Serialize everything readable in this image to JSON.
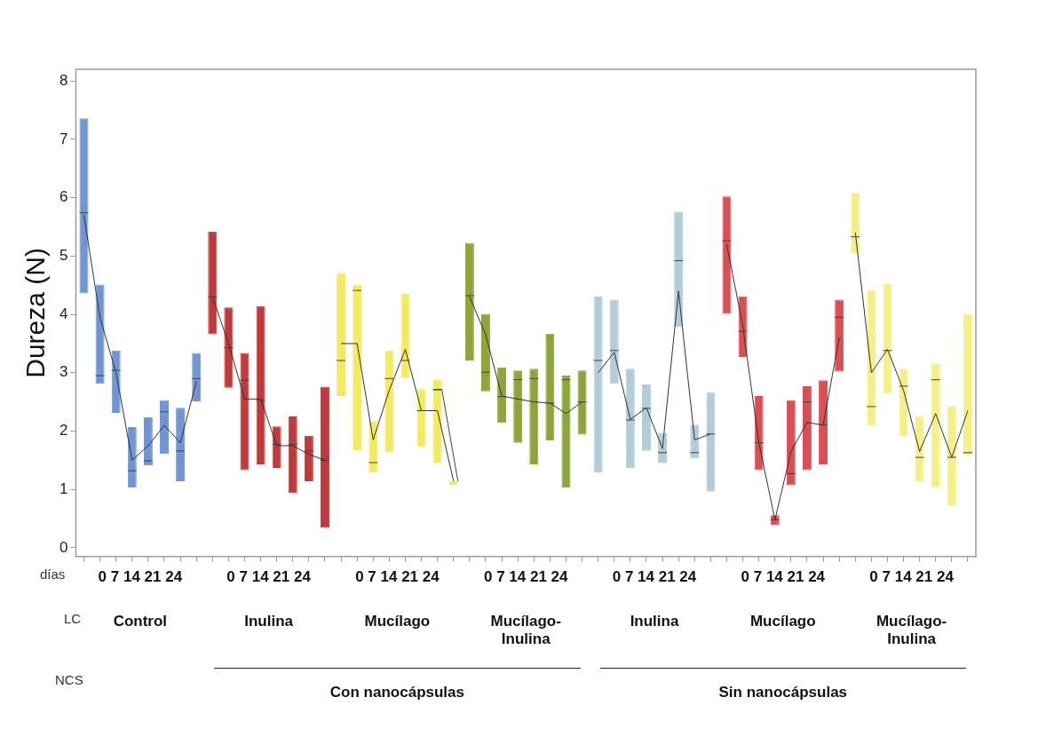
{
  "chart_data": {
    "type": "box",
    "ylabel": "Dureza (N)",
    "ylim": [
      -0.15,
      8.2
    ],
    "yticks": [
      0,
      1,
      2,
      3,
      4,
      5,
      6,
      7,
      8
    ],
    "grid": false,
    "legend": false,
    "categories": [
      null,
      null,
      null,
      null,
      null,
      null,
      null,
      null,
      null,
      null,
      null,
      null,
      null,
      null,
      null,
      null,
      null,
      null,
      null,
      null,
      null,
      null,
      null,
      null,
      null,
      null,
      null,
      null,
      null,
      null,
      null,
      null,
      null,
      null,
      null,
      null,
      null,
      null,
      null,
      null,
      null,
      null,
      null,
      null,
      null,
      null,
      null,
      null,
      null,
      null,
      null,
      null,
      null,
      null,
      null,
      null
    ],
    "annotations": [
      "días",
      "0 7 14 21 24",
      "0 7 14 21 24",
      "0 7 14 21 24",
      "0 7 14 21 24",
      "0 7 14 21 24",
      "0 7 14 21 24",
      "0 7 14 21 24",
      "LC",
      "Control",
      "Inulina",
      "Mucílago",
      "Mucílago-Inulina",
      "Inulina",
      "Mucílago",
      "Mucílago-Inulina",
      "NCS",
      "Con nanocápsulas",
      "Sin nanocápsulas"
    ],
    "series": [
      {
        "type": "box",
        "color": "#6f95d2",
        "boxes": [
          {
            "low": 4.36,
            "q1": 4.36,
            "median": 5.74,
            "q3": 7.36,
            "high": 7.36
          },
          {
            "low": 2.81,
            "q1": 2.81,
            "median": 2.95,
            "q3": 4.51,
            "high": 4.51
          },
          {
            "low": 2.31,
            "q1": 2.31,
            "median": 3.04,
            "q3": 3.38,
            "high": 3.38
          },
          {
            "low": 1.03,
            "q1": 1.03,
            "median": 1.32,
            "q3": 2.07,
            "high": 2.07
          },
          {
            "low": 1.41,
            "q1": 1.41,
            "median": 1.49,
            "q3": 2.24,
            "high": 2.24
          },
          {
            "low": 1.61,
            "q1": 1.61,
            "median": 2.33,
            "q3": 2.53,
            "high": 2.53
          },
          {
            "low": 1.14,
            "q1": 1.14,
            "median": 1.66,
            "q3": 2.4,
            "high": 2.4
          },
          {
            "low": 2.51,
            "q1": 2.51,
            "median": 2.9,
            "q3": 3.34,
            "high": 3.34
          },
          null,
          null,
          null,
          null,
          null,
          null,
          null,
          null,
          null,
          null,
          null,
          null,
          null,
          null,
          null,
          null,
          null,
          null,
          null,
          null,
          null,
          null,
          null,
          null,
          null,
          null,
          null,
          null,
          null,
          null,
          null,
          null,
          null,
          null,
          null,
          null,
          null,
          null,
          null,
          null,
          null,
          null,
          null,
          null,
          null,
          null,
          null,
          null
        ]
      },
      {
        "type": "box",
        "color": "#c0393b",
        "boxes": [
          null,
          null,
          null,
          null,
          null,
          null,
          null,
          null,
          {
            "low": 3.66,
            "q1": 3.66,
            "median": 4.3,
            "q3": 5.42,
            "high": 5.42
          },
          {
            "low": 2.74,
            "q1": 2.74,
            "median": 3.43,
            "q3": 4.12,
            "high": 4.12
          },
          {
            "low": 1.33,
            "q1": 1.33,
            "median": 2.87,
            "q3": 3.34,
            "high": 3.34
          },
          {
            "low": 1.43,
            "q1": 1.43,
            "median": 2.53,
            "q3": 4.14,
            "high": 4.14
          },
          {
            "low": 1.37,
            "q1": 1.37,
            "median": 1.77,
            "q3": 2.08,
            "high": 2.08
          },
          {
            "low": 0.94,
            "q1": 0.94,
            "median": 1.77,
            "q3": 2.25,
            "high": 2.25
          },
          {
            "low": 1.14,
            "q1": 1.14,
            "median": 1.66,
            "q3": 1.92,
            "high": 1.92
          },
          {
            "low": 0.34,
            "q1": 0.34,
            "median": 1.5,
            "q3": 2.76,
            "high": 2.76
          },
          null,
          null,
          null,
          null,
          null,
          null,
          null,
          null,
          null,
          null,
          null,
          null,
          null,
          null,
          null,
          null,
          null,
          null,
          null,
          null,
          null,
          null,
          null,
          null,
          null,
          null,
          null,
          null,
          null,
          null,
          null,
          null,
          null,
          null,
          null,
          null,
          null,
          null,
          null,
          null
        ]
      },
      {
        "type": "box",
        "color": "#f2ea62",
        "boxes": [
          null,
          null,
          null,
          null,
          null,
          null,
          null,
          null,
          null,
          null,
          null,
          null,
          null,
          null,
          null,
          null,
          {
            "low": 2.6,
            "q1": 2.6,
            "median": 3.21,
            "q3": 4.71,
            "high": 4.71
          },
          {
            "low": 1.67,
            "q1": 1.67,
            "median": 4.41,
            "q3": 4.51,
            "high": 4.51
          },
          {
            "low": 1.29,
            "q1": 1.29,
            "median": 1.46,
            "q3": 2.17,
            "high": 2.17
          },
          {
            "low": 1.63,
            "q1": 1.63,
            "median": 2.9,
            "q3": 3.38,
            "high": 3.38
          },
          {
            "low": 2.91,
            "q1": 2.91,
            "median": 3.21,
            "q3": 4.35,
            "high": 4.35
          },
          {
            "low": 1.73,
            "q1": 1.73,
            "median": 2.35,
            "q3": 2.72,
            "high": 2.72
          },
          {
            "low": 1.45,
            "q1": 1.45,
            "median": 2.71,
            "q3": 2.88,
            "high": 2.88
          },
          {
            "low": 1.14,
            "q1": 1.14,
            "median": 1.14,
            "q3": 1.14,
            "high": 1.14
          },
          null,
          null,
          null,
          null,
          null,
          null,
          null,
          null,
          null,
          null,
          null,
          null,
          null,
          null,
          null,
          null,
          null,
          null,
          null,
          null,
          null,
          null,
          null,
          null,
          null,
          null,
          null,
          null,
          null,
          null,
          null,
          null
        ]
      },
      {
        "type": "box",
        "color": "#8ea53a",
        "boxes": [
          null,
          null,
          null,
          null,
          null,
          null,
          null,
          null,
          null,
          null,
          null,
          null,
          null,
          null,
          null,
          null,
          null,
          null,
          null,
          null,
          null,
          null,
          null,
          null,
          {
            "low": 3.21,
            "q1": 3.21,
            "median": 4.32,
            "q3": 5.22,
            "high": 5.22
          },
          {
            "low": 2.68,
            "q1": 2.68,
            "median": 3.01,
            "q3": 4.01,
            "high": 4.01
          },
          {
            "low": 2.14,
            "q1": 2.14,
            "median": 2.59,
            "q3": 3.09,
            "high": 3.09
          },
          {
            "low": 1.8,
            "q1": 1.8,
            "median": 2.88,
            "q3": 3.04,
            "high": 3.04
          },
          {
            "low": 1.43,
            "q1": 1.43,
            "median": 2.9,
            "q3": 3.07,
            "high": 3.07
          },
          {
            "low": 1.84,
            "q1": 1.84,
            "median": 2.48,
            "q3": 3.67,
            "high": 3.67
          },
          {
            "low": 1.03,
            "q1": 1.03,
            "median": 2.88,
            "q3": 2.95,
            "high": 2.95
          },
          {
            "low": 1.94,
            "q1": 1.94,
            "median": 2.5,
            "q3": 3.04,
            "high": 3.04
          },
          null,
          null,
          null,
          null,
          null,
          null,
          null,
          null,
          null,
          null,
          null,
          null,
          null,
          null,
          null,
          null,
          null,
          null,
          null,
          null,
          null,
          null,
          null,
          null
        ]
      },
      {
        "type": "box",
        "color": "#b4ccd8",
        "boxes": [
          null,
          null,
          null,
          null,
          null,
          null,
          null,
          null,
          null,
          null,
          null,
          null,
          null,
          null,
          null,
          null,
          null,
          null,
          null,
          null,
          null,
          null,
          null,
          null,
          null,
          null,
          null,
          null,
          null,
          null,
          null,
          null,
          {
            "low": 1.29,
            "q1": 1.29,
            "median": 3.21,
            "q3": 4.31,
            "high": 4.31
          },
          {
            "low": 2.81,
            "q1": 2.81,
            "median": 3.38,
            "q3": 4.25,
            "high": 4.25
          },
          {
            "low": 1.37,
            "q1": 1.37,
            "median": 2.19,
            "q3": 3.07,
            "high": 3.07
          },
          {
            "low": 1.66,
            "q1": 1.66,
            "median": 2.39,
            "q3": 2.8,
            "high": 2.8
          },
          {
            "low": 1.45,
            "q1": 1.45,
            "median": 1.63,
            "q3": 1.97,
            "high": 1.97
          },
          {
            "low": 3.78,
            "q1": 3.78,
            "median": 4.92,
            "q3": 5.76,
            "high": 5.76
          },
          {
            "low": 1.53,
            "q1": 1.53,
            "median": 1.63,
            "q3": 2.11,
            "high": 2.11
          },
          {
            "low": 0.96,
            "q1": 0.96,
            "median": 1.95,
            "q3": 2.67,
            "high": 2.67
          },
          null,
          null,
          null,
          null,
          null,
          null,
          null,
          null,
          null,
          null,
          null,
          null,
          null,
          null,
          null,
          null
        ]
      },
      {
        "type": "box",
        "color": "#d94f55",
        "boxes": [
          null,
          null,
          null,
          null,
          null,
          null,
          null,
          null,
          null,
          null,
          null,
          null,
          null,
          null,
          null,
          null,
          null,
          null,
          null,
          null,
          null,
          null,
          null,
          null,
          null,
          null,
          null,
          null,
          null,
          null,
          null,
          null,
          null,
          null,
          null,
          null,
          null,
          null,
          null,
          null,
          {
            "low": 4.01,
            "q1": 4.01,
            "median": 5.26,
            "q3": 6.02,
            "high": 6.02
          },
          {
            "low": 3.27,
            "q1": 3.27,
            "median": 3.71,
            "q3": 4.31,
            "high": 4.31
          },
          {
            "low": 1.33,
            "q1": 1.33,
            "median": 1.8,
            "q3": 2.6,
            "high": 2.6
          },
          {
            "low": 0.39,
            "q1": 0.39,
            "median": 0.48,
            "q3": 0.56,
            "high": 0.56
          },
          {
            "low": 1.07,
            "q1": 1.07,
            "median": 1.27,
            "q3": 2.53,
            "high": 2.53
          },
          {
            "low": 1.33,
            "q1": 1.33,
            "median": 2.5,
            "q3": 2.77,
            "high": 2.77
          },
          {
            "low": 1.43,
            "q1": 1.43,
            "median": 2.11,
            "q3": 2.87,
            "high": 2.87
          },
          {
            "low": 3.02,
            "q1": 3.02,
            "median": 3.95,
            "q3": 4.25,
            "high": 4.25
          },
          null,
          null,
          null,
          null,
          null,
          null,
          null,
          null
        ]
      },
      {
        "type": "box",
        "color": "#f5ef88",
        "boxes": [
          null,
          null,
          null,
          null,
          null,
          null,
          null,
          null,
          null,
          null,
          null,
          null,
          null,
          null,
          null,
          null,
          null,
          null,
          null,
          null,
          null,
          null,
          null,
          null,
          null,
          null,
          null,
          null,
          null,
          null,
          null,
          null,
          null,
          null,
          null,
          null,
          null,
          null,
          null,
          null,
          null,
          null,
          null,
          null,
          null,
          null,
          null,
          null,
          {
            "low": 5.05,
            "q1": 5.05,
            "median": 5.33,
            "q3": 6.09,
            "high": 6.09
          },
          {
            "low": 2.1,
            "q1": 2.1,
            "median": 2.42,
            "q3": 4.42,
            "high": 4.42
          },
          {
            "low": 2.64,
            "q1": 2.64,
            "median": 3.38,
            "q3": 4.52,
            "high": 4.52
          },
          {
            "low": 1.91,
            "q1": 1.91,
            "median": 2.77,
            "q3": 3.07,
            "high": 3.07
          },
          {
            "low": 1.14,
            "q1": 1.14,
            "median": 1.55,
            "q3": 2.26,
            "high": 2.26
          },
          {
            "low": 1.03,
            "q1": 1.03,
            "median": 2.88,
            "q3": 3.16,
            "high": 3.16
          },
          {
            "low": 0.73,
            "q1": 0.73,
            "median": 1.55,
            "q3": 2.43,
            "high": 2.43
          },
          {
            "low": 1.59,
            "q1": 1.59,
            "median": 1.63,
            "q3": 4.01,
            "high": 4.01
          }
        ]
      },
      {
        "type": "line",
        "color": "#333333",
        "values": [
          5.7,
          3.95,
          3.0,
          1.5,
          1.75,
          2.1,
          1.8,
          2.85,
          null,
          null,
          null,
          null,
          null,
          null,
          null,
          null,
          null,
          null,
          null,
          null,
          null,
          null,
          null,
          null,
          null,
          null,
          null,
          null,
          null,
          null,
          null,
          null,
          null,
          null,
          null,
          null,
          null,
          null,
          null,
          null,
          null,
          null,
          null,
          null,
          null,
          null,
          null,
          null,
          null,
          null,
          null,
          null,
          null,
          null,
          null,
          null
        ]
      },
      {
        "type": "line",
        "color": "#333333",
        "values": [
          null,
          null,
          null,
          null,
          null,
          null,
          null,
          null,
          4.3,
          3.5,
          2.55,
          2.55,
          1.75,
          1.75,
          1.6,
          1.5,
          null,
          null,
          null,
          null,
          null,
          null,
          null,
          null,
          null,
          null,
          null,
          null,
          null,
          null,
          null,
          null,
          null,
          null,
          null,
          null,
          null,
          null,
          null,
          null,
          null,
          null,
          null,
          null,
          null,
          null,
          null,
          null,
          null,
          null,
          null,
          null,
          null,
          null,
          null,
          null
        ]
      },
      {
        "type": "line",
        "color": "#333333",
        "values": [
          null,
          null,
          null,
          null,
          null,
          null,
          null,
          null,
          null,
          null,
          null,
          null,
          null,
          null,
          null,
          null,
          3.5,
          3.5,
          1.85,
          2.7,
          3.4,
          2.35,
          2.35,
          1.14,
          null,
          null,
          null,
          null,
          null,
          null,
          null,
          null,
          null,
          null,
          null,
          null,
          null,
          null,
          null,
          null,
          null,
          null,
          null,
          null,
          null,
          null,
          null,
          null,
          null,
          null,
          null,
          null,
          null,
          null,
          null,
          null
        ]
      },
      {
        "type": "line",
        "color": "#333333",
        "values": [
          null,
          null,
          null,
          null,
          null,
          null,
          null,
          null,
          null,
          null,
          null,
          null,
          null,
          null,
          null,
          null,
          null,
          null,
          null,
          null,
          null,
          null,
          null,
          null,
          4.3,
          3.65,
          2.6,
          2.55,
          2.5,
          2.48,
          2.3,
          2.5,
          null,
          null,
          null,
          null,
          null,
          null,
          null,
          null,
          null,
          null,
          null,
          null,
          null,
          null,
          null,
          null,
          null,
          null,
          null,
          null,
          null,
          null,
          null,
          null
        ]
      },
      {
        "type": "line",
        "color": "#333333",
        "values": [
          null,
          null,
          null,
          null,
          null,
          null,
          null,
          null,
          null,
          null,
          null,
          null,
          null,
          null,
          null,
          null,
          null,
          null,
          null,
          null,
          null,
          null,
          null,
          null,
          null,
          null,
          null,
          null,
          null,
          null,
          null,
          null,
          3.0,
          3.35,
          2.2,
          2.4,
          1.7,
          4.4,
          1.85,
          1.95,
          null,
          null,
          null,
          null,
          null,
          null,
          null,
          null,
          null,
          null,
          null,
          null,
          null,
          null,
          null,
          null
        ]
      },
      {
        "type": "line",
        "color": "#333333",
        "values": [
          null,
          null,
          null,
          null,
          null,
          null,
          null,
          null,
          null,
          null,
          null,
          null,
          null,
          null,
          null,
          null,
          null,
          null,
          null,
          null,
          null,
          null,
          null,
          null,
          null,
          null,
          null,
          null,
          null,
          null,
          null,
          null,
          null,
          null,
          null,
          null,
          null,
          null,
          null,
          null,
          5.2,
          3.8,
          1.8,
          0.48,
          1.65,
          2.15,
          2.1,
          3.6,
          null,
          null,
          null,
          null,
          null,
          null,
          null,
          null
        ]
      },
      {
        "type": "line",
        "color": "#333333",
        "values": [
          null,
          null,
          null,
          null,
          null,
          null,
          null,
          null,
          null,
          null,
          null,
          null,
          null,
          null,
          null,
          null,
          null,
          null,
          null,
          null,
          null,
          null,
          null,
          null,
          null,
          null,
          null,
          null,
          null,
          null,
          null,
          null,
          null,
          null,
          null,
          null,
          null,
          null,
          null,
          null,
          null,
          null,
          null,
          null,
          null,
          null,
          null,
          null,
          5.4,
          3.0,
          3.4,
          2.7,
          1.65,
          2.3,
          1.55,
          2.35
        ]
      }
    ]
  }
}
